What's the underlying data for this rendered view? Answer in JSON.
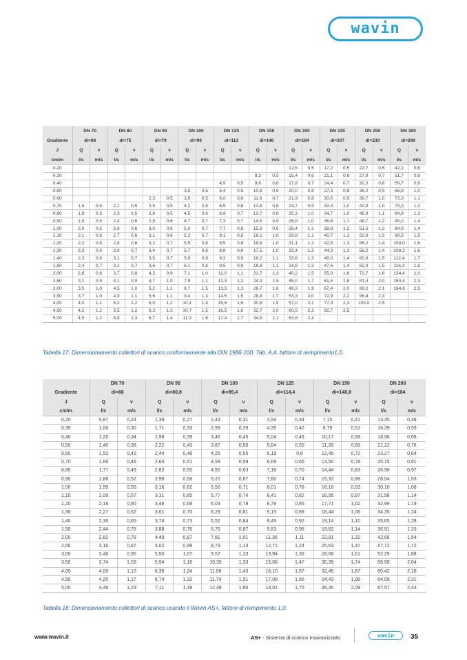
{
  "brand": {
    "logo_text": "wavin",
    "color": "#29a3d6"
  },
  "table17": {
    "header": {
      "gradiente": "Gradiente",
      "j": "J",
      "unit": "cm/m",
      "q": "Q",
      "v": "v",
      "q_unit": "l/s",
      "v_unit": "m/s"
    },
    "columns": [
      {
        "dn": "DN 70",
        "di": "di=68"
      },
      {
        "dn": "DN 80",
        "di": "di=75"
      },
      {
        "dn": "DN 90",
        "di": "di=79"
      },
      {
        "dn": "DN 100",
        "di": "di=96"
      },
      {
        "dn": "DN 125",
        "di": "di=113"
      },
      {
        "dn": "DN 150",
        "di": "di=146"
      },
      {
        "dn": "DN 200",
        "di": "di=184"
      },
      {
        "dn": "DN 225",
        "di": "di=207"
      },
      {
        "dn": "DN 250",
        "di": "di=230"
      },
      {
        "dn": "DN 300",
        "di": "di=290"
      }
    ],
    "rows": [
      [
        "0,20",
        "",
        "",
        "",
        "",
        "",
        "",
        "",
        "",
        "",
        "",
        "",
        "",
        "12,5",
        "0,5",
        "17,2",
        "0,5",
        "22,7",
        "0,5",
        "42,1",
        "0,6"
      ],
      [
        "0,30",
        "",
        "",
        "",
        "",
        "",
        "",
        "",
        "",
        "",
        "",
        "8,3",
        "0,5",
        "15,4",
        "0,6",
        "21,1",
        "0,6",
        "27,9",
        "0,7",
        "51,7",
        "0,8"
      ],
      [
        "0,40",
        "",
        "",
        "",
        "",
        "",
        "",
        "",
        "",
        "4,9",
        "0,5",
        "9,6",
        "0,6",
        "17,8",
        "0,7",
        "24,4",
        "0,7",
        "32,3",
        "0,8",
        "59,7",
        "0,9"
      ],
      [
        "0,50",
        "",
        "",
        "",
        "",
        "",
        "",
        "3,5",
        "0,5",
        "5,4",
        "0,5",
        "10,8",
        "0,6",
        "20,0",
        "0,8",
        "27,3",
        "0,8",
        "36,2",
        "0,9",
        "66,9",
        "1,0"
      ],
      [
        "0,60",
        "",
        "",
        "",
        "",
        "2,3",
        "0,5",
        "3,9",
        "0,5",
        "6,0",
        "0,6",
        "11,8",
        "0,7",
        "21,9",
        "0,8",
        "30,0",
        "0,9",
        "39,7",
        "1,0",
        "73,3",
        "1,1"
      ],
      [
        "0,70",
        "1,6",
        "0,5",
        "2,1",
        "0,5",
        "2,5",
        "0,5",
        "4,2",
        "0,6",
        "6,5",
        "0,6",
        "12,8",
        "0,8",
        "23,7",
        "0,9",
        "32,4",
        "1,0",
        "42,9",
        "1,0",
        "79,3",
        "1,2"
      ],
      [
        "0,80",
        "1,8",
        "0,5",
        "2,3",
        "0,5",
        "2,6",
        "0,5",
        "4,5",
        "0,6",
        "6,9",
        "0,7",
        "13,7",
        "0,8",
        "25,3",
        "1,0",
        "34,7",
        "1,0",
        "45,9",
        "1,1",
        "84,8",
        "1,3"
      ],
      [
        "0,90",
        "1,9",
        "0,5",
        "2,4",
        "0,6",
        "2,8",
        "0,6",
        "4,7",
        "0,7",
        "7,3",
        "0,7",
        "14,5",
        "0,9",
        "26,9",
        "1,0",
        "36,8",
        "1,1",
        "48,7",
        "1,2",
        "90,0",
        "1,4"
      ],
      [
        "1,00",
        "2,0",
        "0,5",
        "2,6",
        "0,6",
        "3,0",
        "0,6",
        "5,0",
        "0,7",
        "7,7",
        "0,8",
        "15,3",
        "0,9",
        "28,4",
        "1,1",
        "38,8",
        "1,2",
        "51,3",
        "1,2",
        "94,9",
        "1,4"
      ],
      [
        "1,10",
        "2,1",
        "0,6",
        "2,7",
        "0,6",
        "3,1",
        "0,6",
        "5,2",
        "0,7",
        "8,1",
        "0,8",
        "16,1",
        "1,0",
        "29,8",
        "1,1",
        "40,7",
        "1,2",
        "53,8",
        "1,3",
        "99,5",
        "1,5"
      ],
      [
        "1,20",
        "2,2",
        "0,6",
        "2,8",
        "0,6",
        "3,2",
        "0,7",
        "5,5",
        "0,8",
        "8,5",
        "0,8",
        "16,8",
        "1,0",
        "31,1",
        "1,2",
        "42,5",
        "1,3",
        "56,2",
        "1,4",
        "104,0",
        "1,6"
      ],
      [
        "1,30",
        "2,3",
        "0,6",
        "2,9",
        "0,7",
        "3,4",
        "0,7",
        "5,7",
        "0,8",
        "8,8",
        "0,9",
        "17,5",
        "1,0",
        "32,4",
        "1,2",
        "44,3",
        "1,3",
        "58,2",
        "1,4",
        "108,2",
        "1,6"
      ],
      [
        "1,40",
        "2,3",
        "0,6",
        "3,1",
        "0,7",
        "3,5",
        "0,7",
        "5,9",
        "0,8",
        "9,2",
        "0,9",
        "18,2",
        "1,1",
        "33,6",
        "1,3",
        "46,0",
        "1,4",
        "60,8",
        "1,5",
        "112,4",
        "1,7"
      ],
      [
        "1,50",
        "2,4",
        "0,7",
        "3,2",
        "0,7",
        "3,6",
        "0,7",
        "6,1",
        "0,8",
        "9,5",
        "0,9",
        "18,8",
        "1,1",
        "34,8",
        "1,3",
        "47,6",
        "1,4",
        "62,9",
        "1,5",
        "116,3",
        "1,8"
      ],
      [
        "2,00",
        "2,8",
        "0,8",
        "3,7",
        "0,8",
        "4,2",
        "0,9",
        "7,1",
        "1,0",
        "11,0",
        "1,1",
        "21,7",
        "1,3",
        "40,2",
        "1,5",
        "55,0",
        "1,6",
        "72,7",
        "1,8",
        "134,4",
        "2,0"
      ],
      [
        "2,50",
        "3,1",
        "0,9",
        "4,1",
        "0,9",
        "4,7",
        "1,0",
        "7,9",
        "1,1",
        "12,3",
        "1,2",
        "24,3",
        "1,5",
        "45,0",
        "1,7",
        "61,5",
        "1,8",
        "81,4",
        "2,0",
        "150,4",
        "2,3"
      ],
      [
        "3,00",
        "3,5",
        "1,0",
        "4,5",
        "1,0",
        "5,2",
        "1,1",
        "8,7",
        "1,5",
        "13,5",
        "1,3",
        "26,7",
        "1,6",
        "49,3",
        "1,9",
        "67,4",
        "2,0",
        "89,2",
        "2,1",
        "164,8",
        "2,5"
      ],
      [
        "3,50",
        "3,7",
        "1,0",
        "4,9",
        "1,1",
        "5,6",
        "1,1",
        "9,4",
        "1,3",
        "14,5",
        "1,5",
        "28,8",
        "1,7",
        "53,3",
        "2,0",
        "72,9",
        "2,2",
        "96,4",
        "2,3",
        "",
        ""
      ],
      [
        "4,00",
        "4,0",
        "1,1",
        "5,2",
        "1,2",
        "6,0",
        "1,2",
        "10,1",
        "1,4",
        "15,6",
        "1,6",
        "30,8",
        "1,8",
        "57,0",
        "2,1",
        "77,9",
        "2,3",
        "103,0",
        "2,5",
        "",
        ""
      ],
      [
        "4,50",
        "4,2",
        "1,2",
        "5,5",
        "1,2",
        "6,3",
        "1,3",
        "10,7",
        "1,5",
        "16,5",
        "1,6",
        "32,7",
        "2,0",
        "60,5",
        "2,3",
        "82,7",
        "2,5",
        "",
        "",
        "",
        ""
      ],
      [
        "5,00",
        "4,5",
        "1,2",
        "5,8",
        "1,3",
        "6,7",
        "1,4",
        "11,3",
        "1,6",
        "17,4",
        "1,7",
        "34,5",
        "2,1",
        "63,8",
        "2,4",
        "",
        "",
        "",
        "",
        "",
        ""
      ]
    ],
    "caption": "Tabella 17: Dimensionamento collettori di scarico conformemente alla DIN 1986-100, Tab. A.4, fattore di riempimento1,0."
  },
  "table18": {
    "header": {
      "gradiente": "Gradiente",
      "j": "J",
      "unit": "cm/m",
      "q": "Q",
      "v": "v",
      "q_unit": "l/s",
      "v_unit": "m/s"
    },
    "columns": [
      {
        "dn": "DN 70",
        "di": "di=68"
      },
      {
        "dn": "DN 90",
        "di": "di=80,8"
      },
      {
        "dn": "DN 100",
        "di": "di=99,4"
      },
      {
        "dn": "DN 125",
        "di": "di=114,4"
      },
      {
        "dn": "DN 150",
        "di": "di=148,8"
      },
      {
        "dn": "DN 200",
        "di": "di=184"
      }
    ],
    "rows": [
      [
        "0,20",
        "0,87",
        "0,24",
        "1,39",
        "0,27",
        "2,43",
        "0,31",
        "3,54",
        "0,34",
        "7,15",
        "0,41",
        "13,35",
        "0,48"
      ],
      [
        "0,30",
        "1,08",
        "0,30",
        "1,71",
        "0,33",
        "2,99",
        "0,39",
        "4,35",
        "0,42",
        "8,79",
        "0,51",
        "16,39",
        "0,59"
      ],
      [
        "0,40",
        "1,25",
        "0,34",
        "1,98",
        "0,39",
        "3,46",
        "0,45",
        "5,04",
        "0,49",
        "10,17",
        "0,58",
        "18,96",
        "0,68"
      ],
      [
        "0,50",
        "1,40",
        "0,38",
        "2,22",
        "0,43",
        "3,87",
        "0,50",
        "5,64",
        "0,55",
        "11,39",
        "0,65",
        "21,22",
        "0,76"
      ],
      [
        "0,60",
        "1,53",
        "0,42",
        "2,44",
        "0,48",
        "4,25",
        "0,55",
        "6,19",
        "0,6",
        "12,49",
        "0,72",
        "23,27",
        "0,84"
      ],
      [
        "0,70",
        "1,66",
        "0,46",
        "2,64",
        "0,51",
        "4,59",
        "0,59",
        "6,69",
        "0,65",
        "13,50",
        "0,78",
        "25,15",
        "0,91"
      ],
      [
        "0,80",
        "1,77",
        "0,49",
        "2,82",
        "0,55",
        "4,92",
        "0,63",
        "7,16",
        "0,70",
        "14,44",
        "0,83",
        "26,90",
        "0,97"
      ],
      [
        "0,90",
        "1,88",
        "0,52",
        "2,99",
        "0,58",
        "5,22",
        "0,67",
        "7,60",
        "0,74",
        "15,32",
        "0,88",
        "28,54",
        "1,03"
      ],
      [
        "1,00",
        "1,99",
        "0,55",
        "3,16",
        "0,62",
        "5,50",
        "0,71",
        "8,01",
        "0,78",
        "16,16",
        "0,93",
        "30,10",
        "1,08"
      ],
      [
        "1,10",
        "2,09",
        "0,57",
        "3,31",
        "0,65",
        "5,77",
        "0,74",
        "8,41",
        "0,82",
        "16,95",
        "0,97",
        "31,58",
        "1,14"
      ],
      [
        "1,20",
        "2,18",
        "0,60",
        "3,46",
        "0,68",
        "6,03",
        "0,78",
        "8,78",
        "0,85",
        "17,71",
        "1,02",
        "32,99",
        "1,19"
      ],
      [
        "1,30",
        "2,27",
        "0,62",
        "3,61",
        "0,70",
        "6,28",
        "0,81",
        "9,15",
        "0,89",
        "18,44",
        "1,06",
        "34,35",
        "1,24"
      ],
      [
        "1,40",
        "2,36",
        "0,65",
        "3,74",
        "0,73",
        "6,52",
        "0,84",
        "9,49",
        "0,92",
        "19,14",
        "1,10",
        "35,65",
        "1,28"
      ],
      [
        "1,50",
        "2,44",
        "0,76",
        "3,88",
        "0,76",
        "6,75",
        "0,87",
        "9,83",
        "0,96",
        "19,82",
        "1,14",
        "36,91",
        "1,33"
      ],
      [
        "2,00",
        "2,82",
        "0,78",
        "4,48",
        "0,87",
        "7,81",
        "1,01",
        "11,36",
        "1,11",
        "22,91",
        "1,32",
        "42,66",
        "1,54"
      ],
      [
        "2,50",
        "3,16",
        "0,87",
        "5,02",
        "0,98",
        "8,73",
        "1,13",
        "12,71",
        "1,24",
        "25,63",
        "1,47",
        "47,72",
        "1,72"
      ],
      [
        "3,00",
        "3,46",
        "0,95",
        "5,50",
        "1,07",
        "9,57",
        "1,23",
        "13,94",
        "1,36",
        "28,08",
        "1,61",
        "52,29",
        "1,88"
      ],
      [
        "3,50",
        "3,74",
        "1,03",
        "5,94",
        "1,16",
        "10,35",
        "1,33",
        "15,06",
        "1,47",
        "30,35",
        "1,74",
        "56,50",
        "2,04"
      ],
      [
        "4,00",
        "4,00",
        "1,10",
        "6,36",
        "1,24",
        "11,06",
        "1,43",
        "16,10",
        "1,57",
        "32,45",
        "1,87",
        "60,42",
        "2,18"
      ],
      [
        "4,50",
        "4,25",
        "1,17",
        "6,74",
        "1,32",
        "11,74",
        "1,51",
        "17,09",
        "1,66",
        "34,43",
        "1,98",
        "64,09",
        "2,31"
      ],
      [
        "5,00",
        "4,48",
        "1,23",
        "7,11",
        "1,39",
        "12,38",
        "1,60",
        "18,01",
        "1,75",
        "36,30",
        "2,09",
        "67,57",
        "2,43"
      ]
    ],
    "caption": "Tabella 18: Dimensionamento collettori di scarico usando il Wavin AS+, fattore di riempimento 1,0."
  },
  "footer": {
    "url": "www.wavin.it",
    "product": "AS+",
    "title": " - Sistema di scarico insonorizzato",
    "page": "35"
  }
}
